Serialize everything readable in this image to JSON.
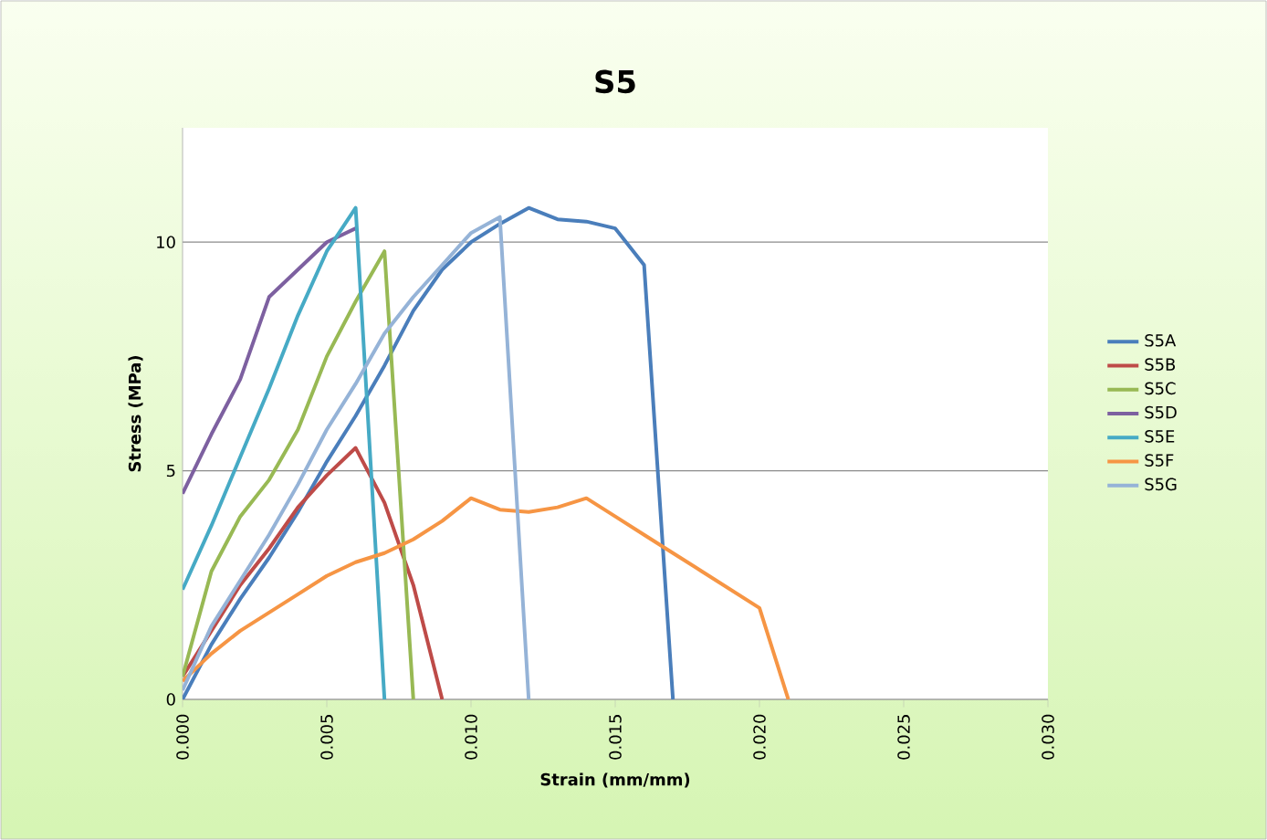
{
  "chart_data": {
    "type": "line",
    "title": "S5",
    "xlabel": "Strain (mm/mm)",
    "ylabel": "Stress (MPa)",
    "xlim": [
      0,
      0.03
    ],
    "ylim": [
      0,
      12.5
    ],
    "xticks": [
      {
        "value": 0,
        "label": "0.000"
      },
      {
        "value": 0.005,
        "label": "0.005"
      },
      {
        "value": 0.01,
        "label": "0.010"
      },
      {
        "value": 0.015,
        "label": "0.015"
      },
      {
        "value": 0.02,
        "label": "0.020"
      },
      {
        "value": 0.025,
        "label": "0.025"
      },
      {
        "value": 0.03,
        "label": "0.030"
      }
    ],
    "yticks": [
      0,
      5,
      10
    ],
    "grid": "y",
    "legend": "right",
    "marker": "none",
    "line_style": "solid",
    "series": [
      {
        "name": "S5A",
        "color": "#4a7ebb",
        "x": [
          0,
          0.001,
          0.002,
          0.003,
          0.004,
          0.005,
          0.006,
          0.007,
          0.008,
          0.009,
          0.01,
          0.011,
          0.012,
          0.013,
          0.014,
          0.015,
          0.016,
          0.017
        ],
        "values": [
          0,
          1.2,
          2.2,
          3.1,
          4.1,
          5.2,
          6.2,
          7.3,
          8.5,
          9.4,
          10.0,
          10.4,
          10.75,
          10.5,
          10.45,
          10.3,
          9.5,
          0
        ]
      },
      {
        "name": "S5B",
        "color": "#be4b48",
        "x": [
          0,
          0.001,
          0.002,
          0.003,
          0.004,
          0.005,
          0.006,
          0.007,
          0.008,
          0.009
        ],
        "values": [
          0.5,
          1.5,
          2.5,
          3.3,
          4.2,
          4.9,
          5.5,
          4.3,
          2.5,
          0
        ]
      },
      {
        "name": "S5C",
        "color": "#98b954",
        "x": [
          0,
          0.001,
          0.002,
          0.003,
          0.004,
          0.005,
          0.006,
          0.007,
          0.008
        ],
        "values": [
          0.5,
          2.8,
          4.0,
          4.8,
          5.9,
          7.5,
          8.7,
          9.8,
          0
        ]
      },
      {
        "name": "S5D",
        "color": "#7d60a0",
        "x": [
          0,
          0.001,
          0.002,
          0.003,
          0.004,
          0.005,
          0.006
        ],
        "values": [
          4.5,
          5.8,
          7.0,
          8.8,
          9.4,
          10.0,
          10.3
        ]
      },
      {
        "name": "S5E",
        "color": "#46aac5",
        "x": [
          0,
          0.001,
          0.002,
          0.003,
          0.004,
          0.005,
          0.006,
          0.007
        ],
        "values": [
          2.4,
          3.8,
          5.3,
          6.8,
          8.4,
          9.8,
          10.75,
          0
        ]
      },
      {
        "name": "S5F",
        "color": "#f69544",
        "x": [
          0,
          0.001,
          0.002,
          0.003,
          0.004,
          0.005,
          0.006,
          0.007,
          0.008,
          0.009,
          0.01,
          0.011,
          0.012,
          0.013,
          0.014,
          0.015,
          0.016,
          0.017,
          0.018,
          0.019,
          0.02,
          0.021
        ],
        "values": [
          0.4,
          1.0,
          1.5,
          1.9,
          2.3,
          2.7,
          3.0,
          3.2,
          3.5,
          3.9,
          4.4,
          4.15,
          4.1,
          4.2,
          4.4,
          4.0,
          3.6,
          3.2,
          2.8,
          2.4,
          2.0,
          0
        ]
      },
      {
        "name": "S5G",
        "color": "#95b3d7",
        "x": [
          0,
          0.001,
          0.002,
          0.003,
          0.004,
          0.005,
          0.006,
          0.007,
          0.008,
          0.009,
          0.01,
          0.011,
          0.012
        ],
        "values": [
          0.2,
          1.6,
          2.6,
          3.6,
          4.7,
          5.9,
          6.9,
          8.0,
          8.8,
          9.5,
          10.2,
          10.55,
          0
        ]
      }
    ]
  }
}
